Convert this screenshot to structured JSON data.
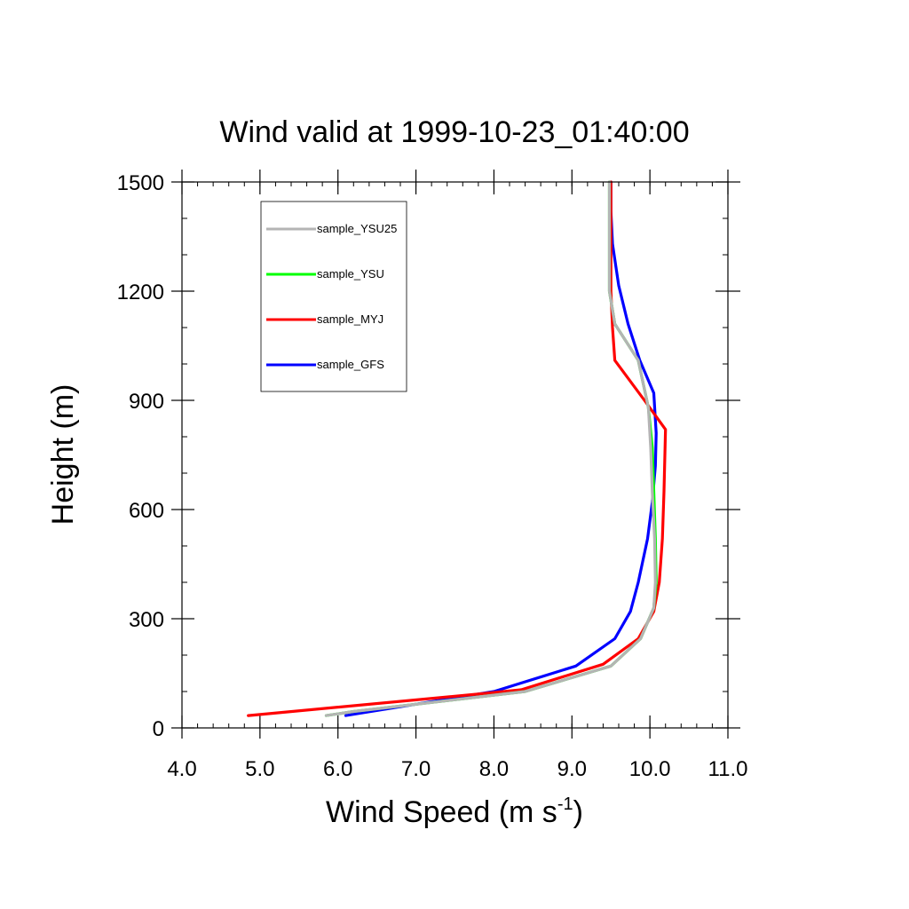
{
  "chart_data": {
    "type": "line",
    "title": "Wind valid at 1999-10-23_01:40:00",
    "xlabel_main": "Wind Speed (m s",
    "xlabel_sup": "-1",
    "xlabel_close": ")",
    "ylabel": "Height (m)",
    "xlim": [
      4.0,
      11.0
    ],
    "ylim": [
      0,
      1500
    ],
    "xticks": [
      4.0,
      5.0,
      6.0,
      7.0,
      8.0,
      9.0,
      10.0,
      11.0
    ],
    "xtick_labels": [
      "4.0",
      "5.0",
      "6.0",
      "7.0",
      "8.0",
      "9.0",
      "10.0",
      "11.0"
    ],
    "yticks": [
      0,
      300,
      600,
      900,
      1200,
      1500
    ],
    "ytick_labels": [
      "0",
      "300",
      "600",
      "900",
      "1200",
      "1500"
    ],
    "legend_position": "top-left",
    "series": [
      {
        "name": "sample_YSU25",
        "color": "#b4b4b4",
        "points": [
          [
            5.85,
            34
          ],
          [
            6.2,
            45
          ],
          [
            8.4,
            100
          ],
          [
            9.5,
            170
          ],
          [
            9.88,
            245
          ],
          [
            10.05,
            330
          ],
          [
            10.07,
            400
          ],
          [
            10.06,
            520
          ],
          [
            10.03,
            650
          ],
          [
            10.01,
            770
          ],
          [
            9.98,
            880
          ],
          [
            9.85,
            1010
          ],
          [
            9.55,
            1110
          ],
          [
            9.48,
            1200
          ],
          [
            9.48,
            1300
          ],
          [
            9.48,
            1400
          ],
          [
            9.48,
            1500
          ]
        ]
      },
      {
        "name": "sample_YSU",
        "color": "#00ff00",
        "points": [
          [
            5.85,
            34
          ],
          [
            6.2,
            45
          ],
          [
            8.4,
            100
          ],
          [
            9.5,
            170
          ],
          [
            9.88,
            245
          ],
          [
            10.05,
            330
          ],
          [
            10.08,
            400
          ],
          [
            10.07,
            520
          ],
          [
            10.05,
            650
          ],
          [
            10.03,
            770
          ],
          [
            9.98,
            880
          ],
          [
            9.85,
            1010
          ],
          [
            9.55,
            1110
          ],
          [
            9.48,
            1200
          ],
          [
            9.48,
            1300
          ],
          [
            9.48,
            1400
          ],
          [
            9.48,
            1500
          ]
        ]
      },
      {
        "name": "sample_MYJ",
        "color": "#ff0000",
        "points": [
          [
            4.85,
            34
          ],
          [
            7.9,
            95
          ],
          [
            8.35,
            105
          ],
          [
            9.4,
            175
          ],
          [
            9.85,
            245
          ],
          [
            10.05,
            320
          ],
          [
            10.12,
            400
          ],
          [
            10.16,
            520
          ],
          [
            10.18,
            650
          ],
          [
            10.2,
            820
          ],
          [
            9.93,
            900
          ],
          [
            9.55,
            1010
          ],
          [
            9.52,
            1100
          ],
          [
            9.5,
            1200
          ],
          [
            9.5,
            1300
          ],
          [
            9.5,
            1400
          ],
          [
            9.5,
            1500
          ]
        ]
      },
      {
        "name": "sample_GFS",
        "color": "#0000ff",
        "points": [
          [
            6.1,
            34
          ],
          [
            8.0,
            100
          ],
          [
            9.05,
            170
          ],
          [
            9.55,
            245
          ],
          [
            9.75,
            320
          ],
          [
            9.85,
            400
          ],
          [
            9.97,
            520
          ],
          [
            10.03,
            620
          ],
          [
            10.07,
            720
          ],
          [
            10.08,
            810
          ],
          [
            10.05,
            920
          ],
          [
            9.87,
            1010
          ],
          [
            9.72,
            1110
          ],
          [
            9.6,
            1215
          ],
          [
            9.52,
            1330
          ],
          [
            9.5,
            1420
          ],
          [
            9.5,
            1500
          ]
        ]
      }
    ]
  }
}
